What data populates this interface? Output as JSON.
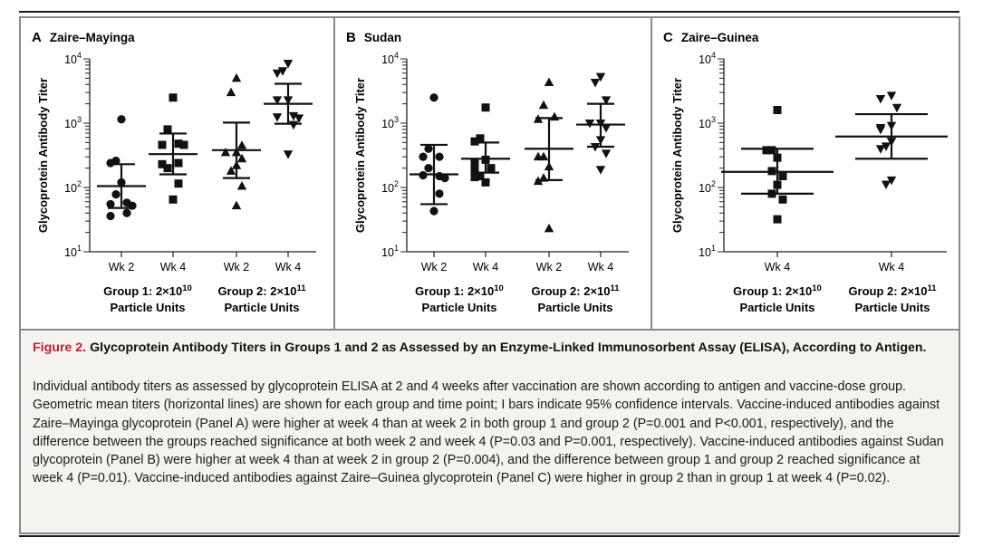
{
  "figure": {
    "label": "Figure 2.",
    "title": "Glycoprotein Antibody Titers in Groups 1 and 2 as Assessed by an Enzyme-Linked Immunosorbent Assay (ELISA), According to Antigen.",
    "body": "Individual antibody titers as assessed by glycoprotein ELISA at 2 and 4 weeks after vaccination are shown according to antigen and vaccine-dose group. Geometric mean titers (horizontal lines) are shown for each group and time point; I bars indicate 95% confidence intervals. Vaccine-induced antibodies against Zaire–Mayinga glycoprotein (Panel A) were higher at week 4 than at week 2 in both group 1 and group 2 (P=0.001 and P<0.001, respectively), and the difference between the groups reached significance at both week 2 and week 4 (P=0.03 and P=0.001, respectively). Vaccine-induced antibodies against Sudan glycoprotein (Panel B) were higher at week 4 than at week 2 in group 2 (P=0.004), and the difference between group 1 and group 2 reached significance at week 4 (P=0.01). Vaccine-induced antibodies against Zaire–Guinea glycoprotein (Panel C) were higher in group 2 than in group 1 at week 4 (P=0.02)."
  },
  "chart_data": [
    {
      "type": "scatter",
      "panel_letter": "A",
      "title": "Zaire–Mayinga",
      "ylabel": "Glycoprotein Antibody Titer",
      "yscale": "log",
      "ylim": [
        10,
        10000
      ],
      "yticks": [
        {
          "base": "10",
          "exp": "1"
        },
        {
          "base": "10",
          "exp": "2"
        },
        {
          "base": "10",
          "exp": "3"
        },
        {
          "base": "10",
          "exp": "4"
        }
      ],
      "groups": [
        {
          "label_line1": "Group 1: 2×10",
          "label_exp": "10",
          "label_line2": "Particle Units"
        },
        {
          "label_line1": "Group 2: 2×10",
          "label_exp": "11",
          "label_line2": "Particle Units"
        }
      ],
      "series": [
        {
          "name": "Wk 2",
          "group": 0,
          "marker": "circle",
          "values": [
            1150,
            260,
            240,
            120,
            78,
            58,
            55,
            52,
            40,
            36
          ],
          "gmt": 105,
          "ci": [
            48,
            230
          ]
        },
        {
          "name": "Wk 4",
          "group": 0,
          "marker": "square",
          "values": [
            2500,
            800,
            480,
            460,
            460,
            240,
            230,
            200,
            115,
            65
          ],
          "gmt": 330,
          "ci": [
            160,
            690
          ]
        },
        {
          "name": "Wk 2",
          "group": 1,
          "marker": "triangle-up",
          "values": [
            5000,
            3000,
            450,
            350,
            350,
            280,
            220,
            180,
            105,
            52
          ],
          "gmt": 380,
          "ci": [
            140,
            1020
          ]
        },
        {
          "name": "Wk 4",
          "group": 1,
          "marker": "triangle-down",
          "values": [
            8500,
            6500,
            6000,
            2300,
            2300,
            1300,
            1250,
            1200,
            950,
            330
          ],
          "gmt": 2000,
          "ci": [
            980,
            4100
          ]
        }
      ]
    },
    {
      "type": "scatter",
      "panel_letter": "B",
      "title": "Sudan",
      "ylabel": "Glycoprotein Antibody Titer",
      "yscale": "log",
      "ylim": [
        10,
        10000
      ],
      "yticks": [
        {
          "base": "10",
          "exp": "1"
        },
        {
          "base": "10",
          "exp": "2"
        },
        {
          "base": "10",
          "exp": "3"
        },
        {
          "base": "10",
          "exp": "4"
        }
      ],
      "groups": [
        {
          "label_line1": "Group 1: 2×10",
          "label_exp": "10",
          "label_line2": "Particle Units"
        },
        {
          "label_line1": "Group 2: 2×10",
          "label_exp": "11",
          "label_line2": "Particle Units"
        }
      ],
      "series": [
        {
          "name": "Wk 2",
          "group": 0,
          "marker": "circle",
          "values": [
            2500,
            400,
            300,
            300,
            200,
            150,
            155,
            140,
            80,
            43
          ],
          "gmt": 160,
          "ci": [
            55,
            460
          ]
        },
        {
          "name": "Wk 4",
          "group": 0,
          "marker": "square",
          "values": [
            1750,
            580,
            520,
            270,
            240,
            200,
            180,
            150,
            145,
            120
          ],
          "gmt": 280,
          "ci": [
            170,
            500
          ]
        },
        {
          "name": "Wk 2",
          "group": 1,
          "marker": "triangle-up",
          "values": [
            4300,
            1900,
            1250,
            1150,
            300,
            300,
            210,
            140,
            125,
            23
          ],
          "gmt": 400,
          "ci": [
            130,
            1200
          ]
        },
        {
          "name": "Wk 4",
          "group": 1,
          "marker": "triangle-down",
          "values": [
            5300,
            4300,
            2300,
            1000,
            1000,
            850,
            550,
            430,
            340,
            190
          ],
          "gmt": 950,
          "ci": [
            430,
            2000
          ]
        }
      ]
    },
    {
      "type": "scatter",
      "panel_letter": "C",
      "title": "Zaire–Guinea",
      "ylabel": "Glycoprotein Antibody Titer",
      "yscale": "log",
      "ylim": [
        10,
        10000
      ],
      "yticks": [
        {
          "base": "10",
          "exp": "1"
        },
        {
          "base": "10",
          "exp": "2"
        },
        {
          "base": "10",
          "exp": "3"
        },
        {
          "base": "10",
          "exp": "4"
        }
      ],
      "groups": [
        {
          "label_line1": "Group 1: 2×10",
          "label_exp": "10",
          "label_line2": "Particle Units"
        },
        {
          "label_line1": "Group 2: 2×10",
          "label_exp": "11",
          "label_line2": "Particle Units"
        }
      ],
      "series": [
        {
          "name": "Wk 4",
          "group": 0,
          "marker": "square",
          "values": [
            1600,
            380,
            380,
            290,
            180,
            150,
            110,
            80,
            65,
            32
          ],
          "gmt": 175,
          "ci": [
            80,
            400
          ]
        },
        {
          "name": "Wk 4",
          "group": 1,
          "marker": "triangle-down",
          "values": [
            2700,
            2400,
            1750,
            920,
            850,
            800,
            520,
            440,
            400,
            130,
            112
          ],
          "gmt": 620,
          "ci": [
            280,
            1380
          ]
        }
      ]
    }
  ]
}
